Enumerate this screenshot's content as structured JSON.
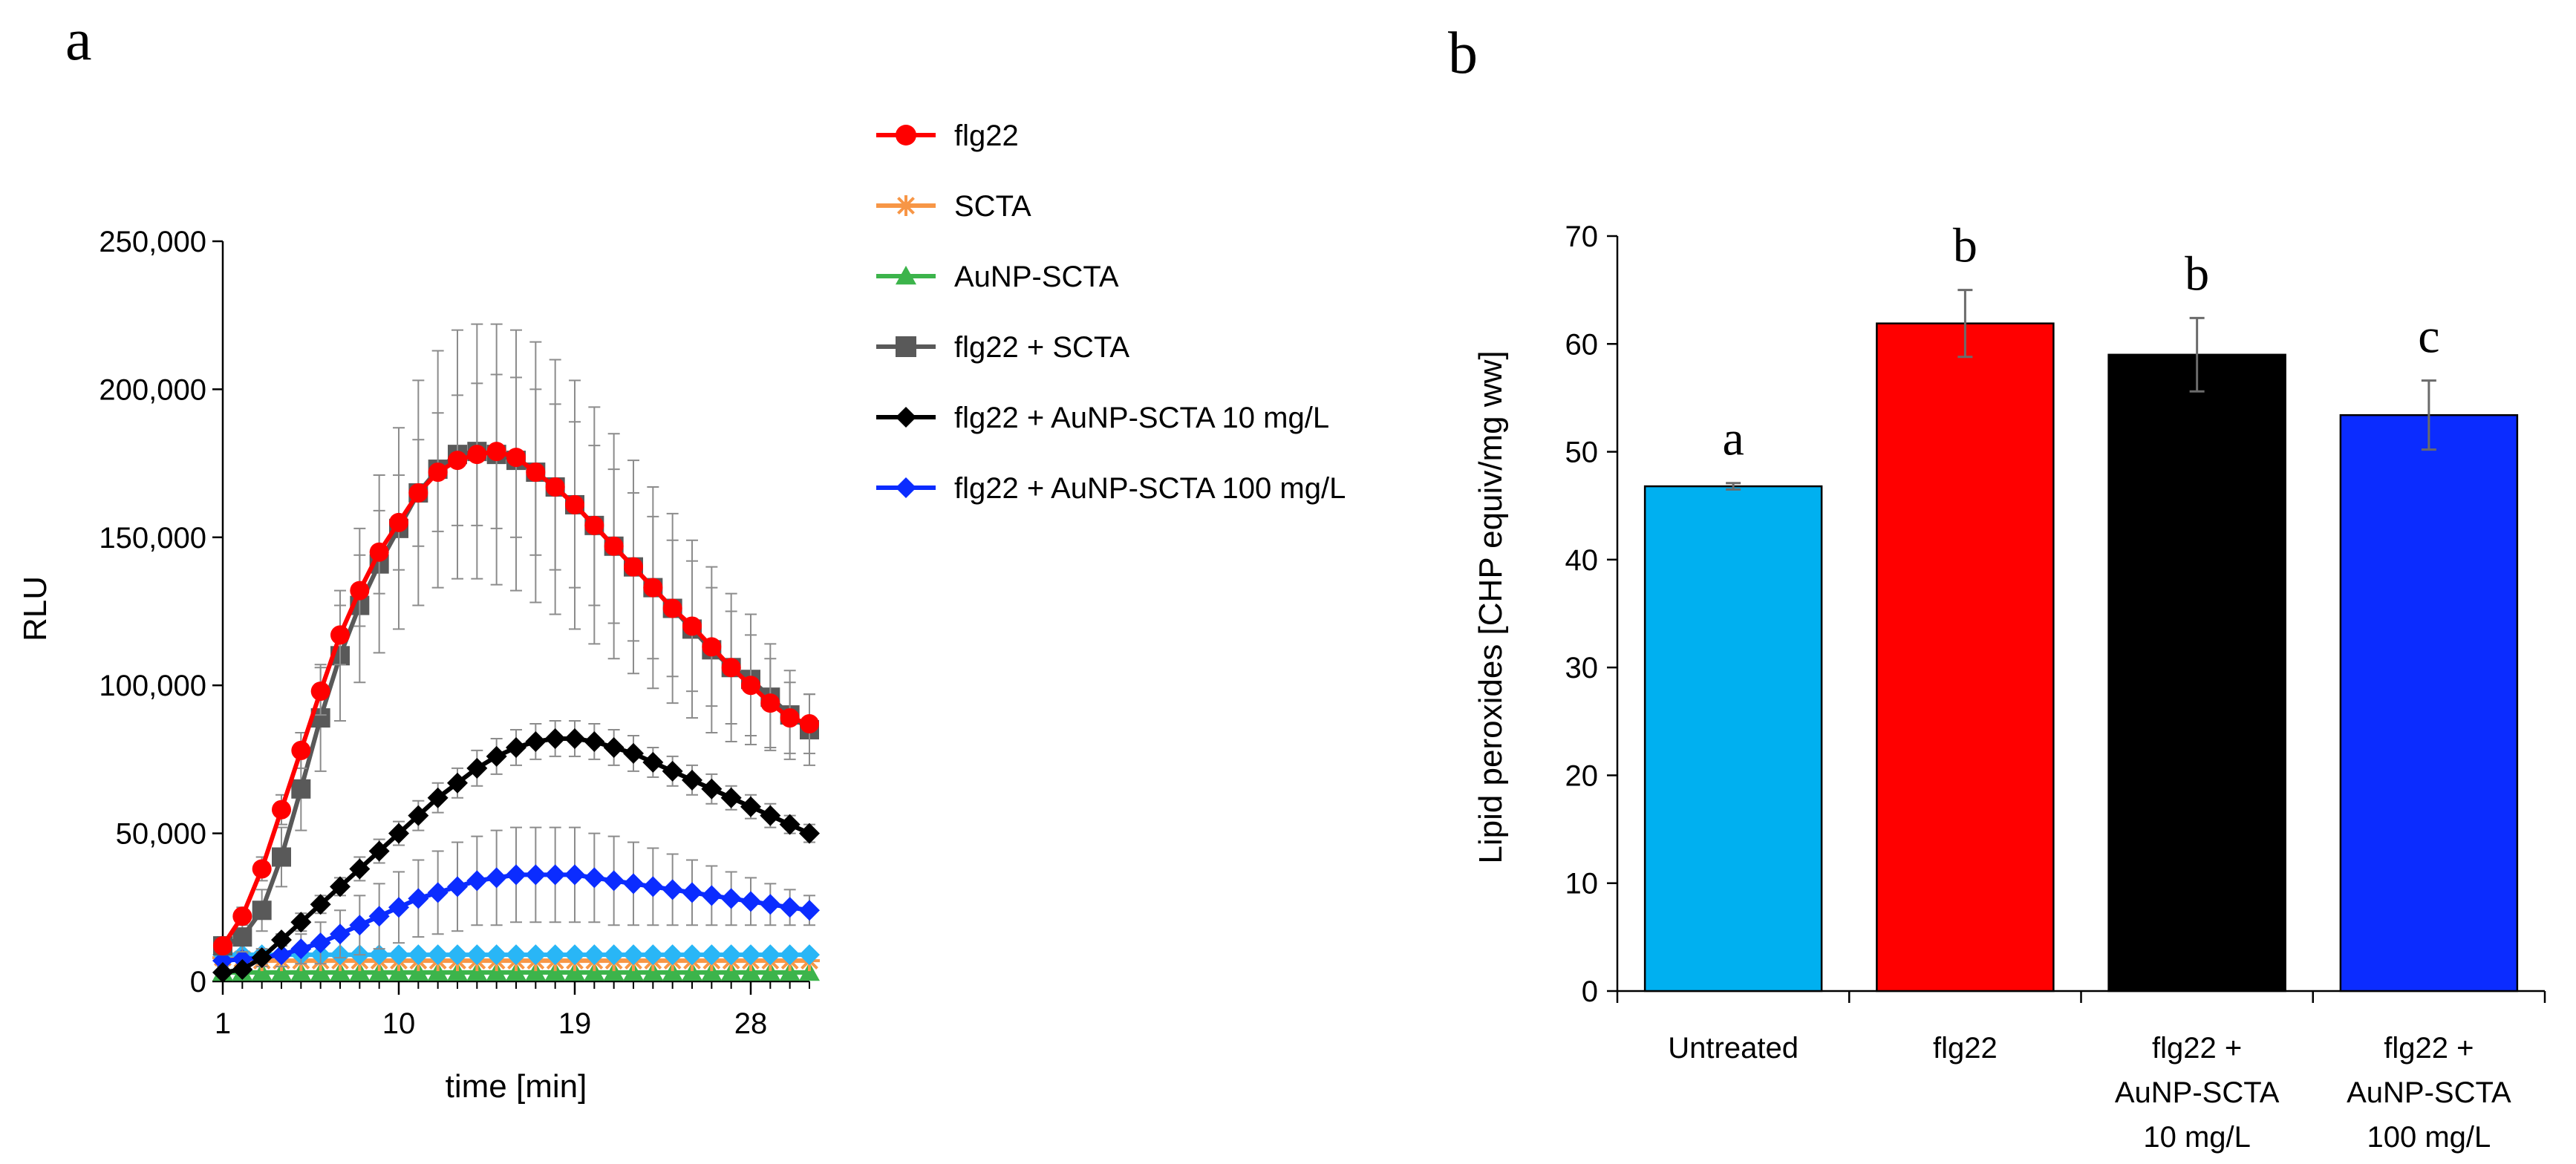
{
  "chart_data": [
    {
      "panel_letter": "a",
      "type": "line",
      "xlabel": "time [min]",
      "ylabel": "RLU",
      "xlim": [
        1,
        31
      ],
      "ylim": [
        0,
        250000
      ],
      "x_ticks": [
        1,
        10,
        19,
        28
      ],
      "y_ticks": [
        0,
        50000,
        100000,
        150000,
        200000,
        250000
      ],
      "y_tick_labels": [
        "0",
        "50,000",
        "100,000",
        "150,000",
        "200,000",
        "250,000"
      ],
      "x": [
        1,
        2,
        3,
        4,
        5,
        6,
        7,
        8,
        9,
        10,
        11,
        12,
        13,
        14,
        15,
        16,
        17,
        18,
        19,
        20,
        21,
        22,
        23,
        24,
        25,
        26,
        27,
        28,
        29,
        30,
        31
      ],
      "series": [
        {
          "name": "flg22",
          "color": "#ff0000",
          "marker": "circle",
          "values": [
            12000,
            22000,
            38000,
            58000,
            78000,
            98000,
            117000,
            132000,
            145000,
            155000,
            165000,
            172000,
            176000,
            178000,
            179000,
            177000,
            172000,
            167000,
            161000,
            154000,
            147000,
            140000,
            133000,
            126000,
            120000,
            113000,
            106000,
            100000,
            94000,
            89000,
            87000
          ],
          "errors": [
            2000,
            3000,
            4000,
            5000,
            6000,
            8000,
            10000,
            12000,
            14000,
            16000,
            18000,
            20000,
            22000,
            24000,
            26000,
            27000,
            28000,
            28000,
            28000,
            27000,
            26000,
            25000,
            24000,
            23000,
            22000,
            20000,
            19000,
            17000,
            15000,
            12000,
            10000
          ]
        },
        {
          "name": "SCTA",
          "color": "#f79646",
          "marker": "asterisk",
          "values": [
            8000,
            7500,
            7000,
            7000,
            7000,
            7000,
            7000,
            7000,
            7000,
            7000,
            7000,
            7000,
            7000,
            7000,
            7000,
            7000,
            7000,
            7000,
            7000,
            7000,
            7000,
            7000,
            7000,
            7000,
            7000,
            7000,
            7000,
            7000,
            7000,
            7000,
            7000
          ],
          "errors": [
            0,
            0,
            0,
            0,
            0,
            0,
            0,
            0,
            0,
            0,
            0,
            0,
            0,
            0,
            0,
            0,
            0,
            0,
            0,
            0,
            0,
            0,
            0,
            0,
            0,
            0,
            0,
            0,
            0,
            0,
            0
          ]
        },
        {
          "name": "AuNP-SCTA",
          "color": "#3cb44b",
          "marker": "triangle",
          "values": [
            3000,
            3000,
            3000,
            3000,
            3000,
            3000,
            3000,
            3000,
            3000,
            3000,
            3000,
            3000,
            3000,
            3000,
            3000,
            3000,
            3000,
            3000,
            3000,
            3000,
            3000,
            3000,
            3000,
            3000,
            3000,
            3000,
            3000,
            3000,
            3000,
            3000,
            3000
          ],
          "errors": [
            0,
            0,
            0,
            0,
            0,
            0,
            0,
            0,
            0,
            0,
            0,
            0,
            0,
            0,
            0,
            0,
            0,
            0,
            0,
            0,
            0,
            0,
            0,
            0,
            0,
            0,
            0,
            0,
            0,
            0,
            0
          ]
        },
        {
          "name": "flg22 + SCTA",
          "color": "#595959",
          "marker": "square",
          "values": [
            12000,
            15000,
            24000,
            42000,
            65000,
            89000,
            110000,
            127000,
            141000,
            153000,
            165000,
            173000,
            178000,
            179000,
            178000,
            176000,
            172000,
            167000,
            161000,
            154000,
            147000,
            140000,
            133000,
            126000,
            119000,
            112000,
            106000,
            102000,
            96000,
            90000,
            85000
          ],
          "errors": [
            3000,
            5000,
            7000,
            10000,
            14000,
            18000,
            22000,
            26000,
            30000,
            34000,
            38000,
            40000,
            42000,
            43000,
            44000,
            44000,
            44000,
            43000,
            42000,
            40000,
            38000,
            36000,
            34000,
            32000,
            30000,
            28000,
            25000,
            22000,
            18000,
            15000,
            12000
          ]
        },
        {
          "name": "flg22 + AuNP-SCTA 10 mg/L",
          "color": "#000000",
          "marker": "diamond",
          "values": [
            3000,
            4000,
            8000,
            14000,
            20000,
            26000,
            32000,
            38000,
            44000,
            50000,
            56000,
            62000,
            67000,
            72000,
            76000,
            79000,
            81000,
            82000,
            82000,
            81000,
            79000,
            77000,
            74000,
            71000,
            68000,
            65000,
            62000,
            59000,
            56000,
            53000,
            50000
          ],
          "errors": [
            1000,
            1000,
            2000,
            2000,
            3000,
            3000,
            3000,
            4000,
            4000,
            4000,
            5000,
            5000,
            5000,
            6000,
            6000,
            6000,
            6000,
            6000,
            6000,
            6000,
            6000,
            6000,
            5000,
            5000,
            5000,
            5000,
            4000,
            4000,
            4000,
            3000,
            3000
          ]
        },
        {
          "name": "flg22 + AuNP-SCTA 100 mg/L",
          "color": "#0b2cff",
          "marker": "diamond",
          "values": [
            7000,
            7500,
            8000,
            9000,
            11000,
            13000,
            16000,
            19000,
            22000,
            25000,
            28000,
            30000,
            32000,
            34000,
            35000,
            36000,
            36000,
            36000,
            36000,
            35000,
            34000,
            33000,
            32000,
            31000,
            30000,
            29000,
            28000,
            27000,
            26000,
            25000,
            24000
          ],
          "errors": [
            2000,
            2000,
            3000,
            4000,
            5000,
            7000,
            8000,
            10000,
            11000,
            12000,
            13000,
            14000,
            15000,
            15000,
            16000,
            16000,
            16000,
            16000,
            16000,
            15000,
            15000,
            14000,
            13000,
            12000,
            11000,
            10000,
            9000,
            8000,
            7000,
            6000,
            5000
          ]
        },
        {
          "name": "",
          "legend": false,
          "color": "#29b6f6",
          "marker": "diamond",
          "values": [
            9000,
            9000,
            9000,
            9000,
            9000,
            9000,
            9000,
            9000,
            9000,
            9000,
            9000,
            9000,
            9000,
            9000,
            9000,
            9000,
            9000,
            9000,
            9000,
            9000,
            9000,
            9000,
            9000,
            9000,
            9000,
            9000,
            9000,
            9000,
            9000,
            9000,
            9000
          ],
          "errors": [
            0,
            0,
            0,
            0,
            0,
            0,
            0,
            0,
            0,
            0,
            0,
            0,
            0,
            0,
            0,
            0,
            0,
            0,
            0,
            0,
            0,
            0,
            0,
            0,
            0,
            0,
            0,
            0,
            0,
            0,
            0
          ]
        }
      ],
      "legend_position": "top-right"
    },
    {
      "panel_letter": "b",
      "type": "bar",
      "ylabel": "Lipid peroxides [CHP equiv/mg ww]",
      "ylim": [
        0,
        70
      ],
      "y_ticks": [
        0,
        10,
        20,
        30,
        40,
        50,
        60,
        70
      ],
      "categories": [
        [
          "Untreated"
        ],
        [
          "flg22"
        ],
        [
          "flg22 +",
          "AuNP-SCTA",
          "10 mg/L"
        ],
        [
          "flg22 +",
          "AuNP-SCTA",
          "100 mg/L"
        ]
      ],
      "values": [
        46.8,
        61.9,
        59.0,
        53.4
      ],
      "errors": [
        0.3,
        3.1,
        3.4,
        3.2
      ],
      "colors": [
        "#00b0f0",
        "#ff0000",
        "#000000",
        "#0b2cff"
      ],
      "significance": [
        "a",
        "b",
        "b",
        "c"
      ]
    }
  ]
}
